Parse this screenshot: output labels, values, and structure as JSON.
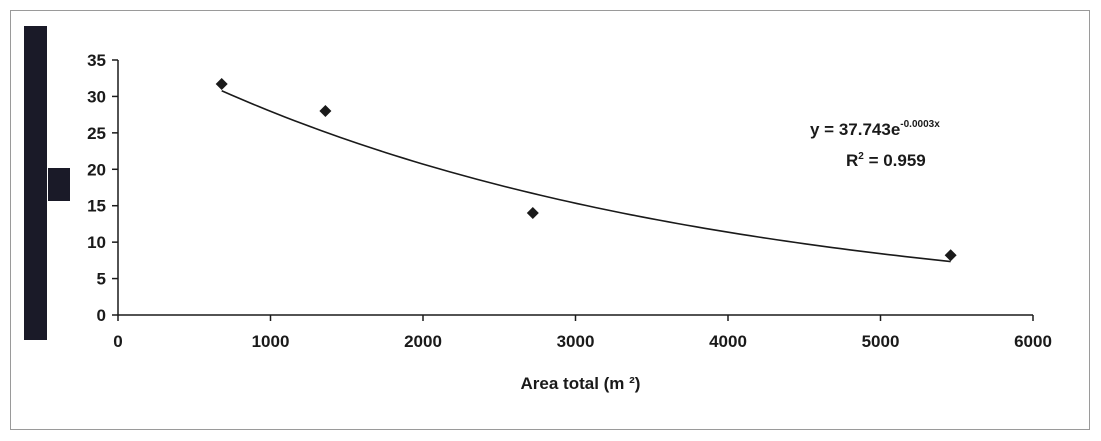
{
  "chart_data": {
    "type": "scatter",
    "title": "",
    "xlabel": "Area total (m ²)",
    "ylabel": "",
    "xlim": [
      0,
      6000
    ],
    "ylim": [
      0,
      35
    ],
    "x_ticks": [
      "0",
      "1000",
      "2000",
      "3000",
      "4000",
      "5000",
      "6000"
    ],
    "y_ticks": [
      "0",
      "5",
      "10",
      "15",
      "20",
      "25",
      "30",
      "35"
    ],
    "grid": false,
    "legend": "none",
    "series": [
      {
        "x": [
          680,
          1360,
          2720,
          5460
        ],
        "y": [
          31.7,
          28.0,
          14.0,
          8.2
        ],
        "marker": "diamond",
        "color": "#1a1a1a"
      }
    ],
    "trendline": {
      "type": "exponential",
      "a": 37.743,
      "b": -0.0003,
      "x_range": [
        680,
        5460
      ],
      "color": "#1a1a1a"
    },
    "annotations": {
      "equation_main": "y = 37.743e",
      "equation_exponent": "-0.0003x",
      "r2_label": "R",
      "r2_sup": "2",
      "r2_value": " = 0.959"
    }
  }
}
